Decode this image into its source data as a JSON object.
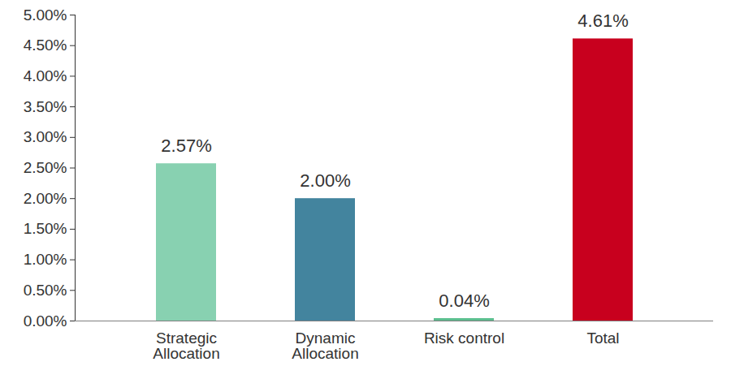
{
  "chart_data": {
    "type": "bar",
    "categories": [
      "Strategic Allocation",
      "Dynamic Allocation",
      "Risk control",
      "Total"
    ],
    "values": [
      2.57,
      2.0,
      0.04,
      4.61
    ],
    "value_labels": [
      "2.57%",
      "2.00%",
      "0.04%",
      "4.61%"
    ],
    "colors": [
      "#88d1b1",
      "#43849e",
      "#5cbf8f",
      "#c8001e"
    ],
    "data_labels": true,
    "grid": false,
    "ylim": [
      0,
      5
    ],
    "yticks": [
      {
        "value": 0,
        "label": "0.00%"
      },
      {
        "value": 0.5,
        "label": "0.50%"
      },
      {
        "value": 1,
        "label": "1.00%"
      },
      {
        "value": 1.5,
        "label": "1.50%"
      },
      {
        "value": 2,
        "label": "2.00%"
      },
      {
        "value": 2.5,
        "label": "2.50%"
      },
      {
        "value": 3,
        "label": "3.00%"
      },
      {
        "value": 3.5,
        "label": "3.50%"
      },
      {
        "value": 4,
        "label": "4.00%"
      },
      {
        "value": 4.5,
        "label": "4.50%"
      },
      {
        "value": 5,
        "label": "5.00%"
      }
    ]
  }
}
